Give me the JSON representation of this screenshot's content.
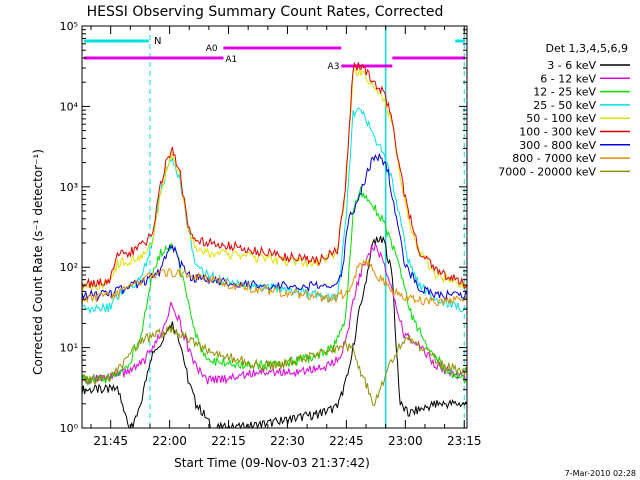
{
  "chart_data": {
    "type": "line",
    "title": "HESSI Observing Summary Count Rates, Corrected",
    "xlabel": "Start Time (09-Nov-03 21:37:42)",
    "ylabel": "Corrected Count Rate (s⁻¹ detector⁻¹)",
    "ylog": true,
    "ylim": [
      1,
      100000
    ],
    "xlim_minutes": [
      0,
      98
    ],
    "x_ticks": [
      "21:45",
      "22:00",
      "22:15",
      "22:30",
      "22:45",
      "23:00",
      "23:15"
    ],
    "y_ticks": [
      "10⁰",
      "10¹",
      "10²",
      "10³",
      "10⁴",
      "10⁵"
    ],
    "legend_title": "Det 1,3,4,5,6,9",
    "legend_position": "right",
    "flag_labels": {
      "night": "N",
      "atten0": "A0",
      "atten1": "A1",
      "atten3": "A3"
    },
    "series": [
      {
        "name": "3 - 6 keV",
        "color": "#000000",
        "points": [
          [
            0,
            3
          ],
          [
            5,
            3
          ],
          [
            9,
            3
          ],
          [
            11,
            1.5
          ],
          [
            12,
            1
          ],
          [
            13,
            1
          ],
          [
            15,
            2
          ],
          [
            17,
            6
          ],
          [
            18,
            9
          ],
          [
            20,
            12
          ],
          [
            22,
            18
          ],
          [
            23,
            20
          ],
          [
            25,
            12
          ],
          [
            27,
            4
          ],
          [
            29,
            2
          ],
          [
            31,
            1.5
          ],
          [
            33,
            1
          ],
          [
            40,
            1
          ],
          [
            50,
            1.2
          ],
          [
            60,
            1.5
          ],
          [
            65,
            1.8
          ],
          [
            68,
            5
          ],
          [
            70,
            20
          ],
          [
            72,
            60
          ],
          [
            74,
            200
          ],
          [
            75,
            230
          ],
          [
            77,
            200
          ],
          [
            79,
            80
          ],
          [
            80,
            10
          ],
          [
            81,
            2
          ],
          [
            83,
            1.5
          ],
          [
            90,
            2
          ],
          [
            98,
            2
          ]
        ]
      },
      {
        "name": "6 - 12 keV",
        "color": "#e100e1",
        "points": [
          [
            0,
            4
          ],
          [
            6,
            4
          ],
          [
            9,
            4.5
          ],
          [
            12,
            5
          ],
          [
            15,
            6
          ],
          [
            18,
            10
          ],
          [
            20,
            15
          ],
          [
            22,
            28
          ],
          [
            23,
            35
          ],
          [
            25,
            20
          ],
          [
            27,
            10
          ],
          [
            29,
            6
          ],
          [
            31,
            4
          ],
          [
            35,
            4
          ],
          [
            45,
            5
          ],
          [
            55,
            5
          ],
          [
            63,
            6
          ],
          [
            66,
            8
          ],
          [
            68,
            20
          ],
          [
            70,
            60
          ],
          [
            72,
            120
          ],
          [
            74,
            180
          ],
          [
            76,
            150
          ],
          [
            78,
            70
          ],
          [
            80,
            30
          ],
          [
            82,
            15
          ],
          [
            85,
            12
          ],
          [
            90,
            6
          ],
          [
            98,
            4
          ]
        ]
      },
      {
        "name": "12 - 25 keV",
        "color": "#00e100",
        "points": [
          [
            0,
            4
          ],
          [
            6,
            4
          ],
          [
            9,
            4.5
          ],
          [
            12,
            6
          ],
          [
            15,
            15
          ],
          [
            18,
            80
          ],
          [
            20,
            150
          ],
          [
            22,
            190
          ],
          [
            24,
            160
          ],
          [
            26,
            60
          ],
          [
            28,
            20
          ],
          [
            30,
            10
          ],
          [
            33,
            7
          ],
          [
            40,
            6
          ],
          [
            50,
            6
          ],
          [
            60,
            8
          ],
          [
            64,
            10
          ],
          [
            67,
            20
          ],
          [
            69,
            500
          ],
          [
            71,
            900
          ],
          [
            73,
            700
          ],
          [
            75,
            500
          ],
          [
            77,
            350
          ],
          [
            79,
            180
          ],
          [
            81,
            90
          ],
          [
            84,
            25
          ],
          [
            88,
            10
          ],
          [
            93,
            5
          ],
          [
            98,
            4
          ]
        ]
      },
      {
        "name": "25 - 50 keV",
        "color": "#00e1e1",
        "points": [
          [
            0,
            30
          ],
          [
            4,
            30
          ],
          [
            7,
            32
          ],
          [
            9,
            45
          ],
          [
            12,
            55
          ],
          [
            15,
            70
          ],
          [
            18,
            200
          ],
          [
            20,
            900
          ],
          [
            22,
            1800
          ],
          [
            23,
            2100
          ],
          [
            25,
            1200
          ],
          [
            27,
            300
          ],
          [
            29,
            100
          ],
          [
            31,
            85
          ],
          [
            35,
            70
          ],
          [
            40,
            60
          ],
          [
            50,
            55
          ],
          [
            60,
            45
          ],
          [
            65,
            40
          ],
          [
            67,
            300
          ],
          [
            69,
            8000
          ],
          [
            71,
            9000
          ],
          [
            73,
            6000
          ],
          [
            75,
            3500
          ],
          [
            77,
            2500
          ],
          [
            79,
            1200
          ],
          [
            81,
            400
          ],
          [
            83,
            120
          ],
          [
            86,
            60
          ],
          [
            90,
            40
          ],
          [
            98,
            30
          ]
        ]
      },
      {
        "name": "50 - 100 keV",
        "color": "#e1e100",
        "points": [
          [
            0,
            60
          ],
          [
            4,
            60
          ],
          [
            7,
            65
          ],
          [
            9,
            110
          ],
          [
            12,
            120
          ],
          [
            15,
            140
          ],
          [
            18,
            200
          ],
          [
            20,
            900
          ],
          [
            22,
            2000
          ],
          [
            23,
            2400
          ],
          [
            25,
            1300
          ],
          [
            27,
            300
          ],
          [
            29,
            170
          ],
          [
            31,
            150
          ],
          [
            40,
            140
          ],
          [
            50,
            120
          ],
          [
            60,
            110
          ],
          [
            65,
            150
          ],
          [
            67,
            800
          ],
          [
            69,
            25000
          ],
          [
            71,
            27000
          ],
          [
            73,
            20000
          ],
          [
            75,
            15000
          ],
          [
            77,
            12000
          ],
          [
            79,
            6000
          ],
          [
            81,
            1200
          ],
          [
            83,
            400
          ],
          [
            86,
            150
          ],
          [
            90,
            80
          ],
          [
            98,
            60
          ]
        ]
      },
      {
        "name": "100 - 300 keV",
        "color": "#e10000",
        "points": [
          [
            0,
            60
          ],
          [
            4,
            65
          ],
          [
            7,
            70
          ],
          [
            9,
            140
          ],
          [
            12,
            150
          ],
          [
            15,
            180
          ],
          [
            18,
            250
          ],
          [
            20,
            1100
          ],
          [
            22,
            2500
          ],
          [
            23,
            2900
          ],
          [
            25,
            1500
          ],
          [
            27,
            320
          ],
          [
            29,
            230
          ],
          [
            31,
            210
          ],
          [
            40,
            180
          ],
          [
            50,
            140
          ],
          [
            60,
            120
          ],
          [
            65,
            160
          ],
          [
            67,
            900
          ],
          [
            69,
            30000
          ],
          [
            71,
            32000
          ],
          [
            73,
            24000
          ],
          [
            75,
            18000
          ],
          [
            77,
            14000
          ],
          [
            79,
            7000
          ],
          [
            81,
            1500
          ],
          [
            83,
            500
          ],
          [
            86,
            160
          ],
          [
            90,
            90
          ],
          [
            98,
            60
          ]
        ]
      },
      {
        "name": "300 - 800 keV",
        "color": "#0000e1",
        "points": [
          [
            0,
            45
          ],
          [
            6,
            45
          ],
          [
            12,
            55
          ],
          [
            18,
            75
          ],
          [
            20,
            90
          ],
          [
            22,
            160
          ],
          [
            23,
            190
          ],
          [
            25,
            110
          ],
          [
            27,
            80
          ],
          [
            30,
            70
          ],
          [
            40,
            60
          ],
          [
            50,
            58
          ],
          [
            60,
            58
          ],
          [
            64,
            62
          ],
          [
            66,
            80
          ],
          [
            68,
            400
          ],
          [
            70,
            600
          ],
          [
            72,
            1200
          ],
          [
            74,
            2200
          ],
          [
            76,
            2500
          ],
          [
            78,
            1500
          ],
          [
            80,
            400
          ],
          [
            82,
            120
          ],
          [
            85,
            60
          ],
          [
            90,
            45
          ],
          [
            98,
            45
          ]
        ]
      },
      {
        "name": "800 - 7000 keV",
        "color": "#e18e00",
        "points": [
          [
            0,
            40
          ],
          [
            8,
            45
          ],
          [
            12,
            55
          ],
          [
            18,
            80
          ],
          [
            22,
            85
          ],
          [
            26,
            80
          ],
          [
            32,
            70
          ],
          [
            40,
            58
          ],
          [
            50,
            50
          ],
          [
            58,
            45
          ],
          [
            62,
            42
          ],
          [
            64,
            40
          ],
          [
            66,
            45
          ],
          [
            68,
            55
          ],
          [
            70,
            90
          ],
          [
            72,
            120
          ],
          [
            74,
            100
          ],
          [
            76,
            70
          ],
          [
            78,
            55
          ],
          [
            81,
            45
          ],
          [
            84,
            40
          ],
          [
            90,
            38
          ],
          [
            98,
            38
          ]
        ]
      },
      {
        "name": "7000 - 20000 keV",
        "color": "#8e8e00",
        "points": [
          [
            0,
            4
          ],
          [
            6,
            4
          ],
          [
            9,
            5
          ],
          [
            12,
            8
          ],
          [
            15,
            12
          ],
          [
            18,
            14
          ],
          [
            20,
            15
          ],
          [
            23,
            16
          ],
          [
            26,
            14
          ],
          [
            30,
            10
          ],
          [
            35,
            8
          ],
          [
            40,
            7
          ],
          [
            45,
            6
          ],
          [
            50,
            6
          ],
          [
            55,
            7
          ],
          [
            60,
            8
          ],
          [
            63,
            9
          ],
          [
            65,
            10
          ],
          [
            67,
            11
          ],
          [
            69,
            9
          ],
          [
            71,
            5
          ],
          [
            73,
            3
          ],
          [
            74,
            2
          ],
          [
            75,
            2.5
          ],
          [
            77,
            4
          ],
          [
            79,
            7
          ],
          [
            81,
            11
          ],
          [
            83,
            13
          ],
          [
            85,
            11
          ],
          [
            88,
            9
          ],
          [
            92,
            6
          ],
          [
            98,
            5
          ]
        ]
      }
    ]
  },
  "footer": {
    "timestamp": "7-Mar-2010 02:28"
  }
}
